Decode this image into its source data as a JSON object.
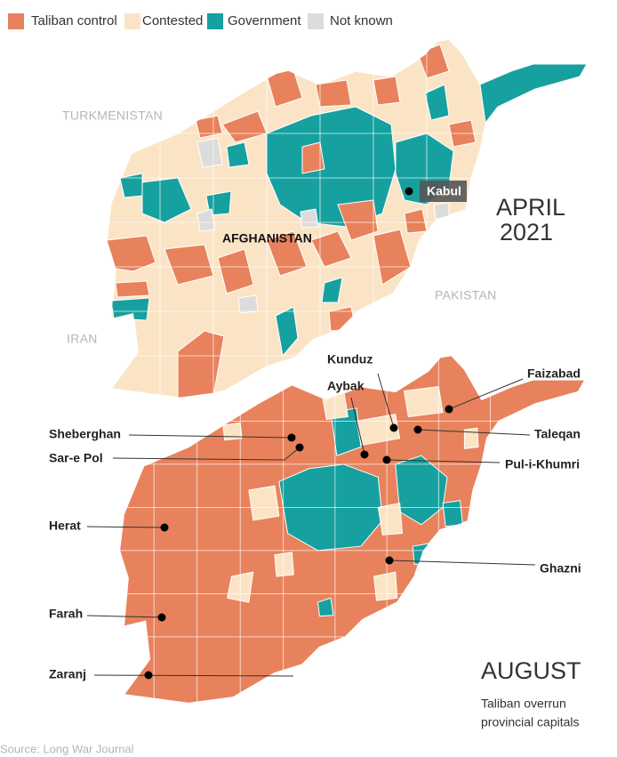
{
  "legend": [
    {
      "label": "Taliban control",
      "color": "#e8825c"
    },
    {
      "label": "Contested",
      "color": "#fbe4c6"
    },
    {
      "label": "Government",
      "color": "#16a0a0"
    },
    {
      "label": "Not known",
      "color": "#dcdcdc"
    }
  ],
  "april_map": {
    "title_lines": [
      "APRIL",
      "2021"
    ],
    "labels": {
      "turkmenistan": "TURKMENISTAN",
      "afghanistan": "AFGHANISTAN",
      "pakistan": "PAKISTAN",
      "iran": "IRAN",
      "kabul": "Kabul"
    }
  },
  "august_map": {
    "title": "AUGUST",
    "subtitle_lines": [
      "Taliban overrun",
      "provincial capitals"
    ],
    "cities": [
      "Kunduz",
      "Faizabad",
      "Aybak",
      "Sheberghan",
      "Taleqan",
      "Sar-e Pol",
      "Pul-i-Khumri",
      "Herat",
      "Ghazni",
      "Farah",
      "Zaranj"
    ]
  },
  "source": "Source: Long War Journal"
}
